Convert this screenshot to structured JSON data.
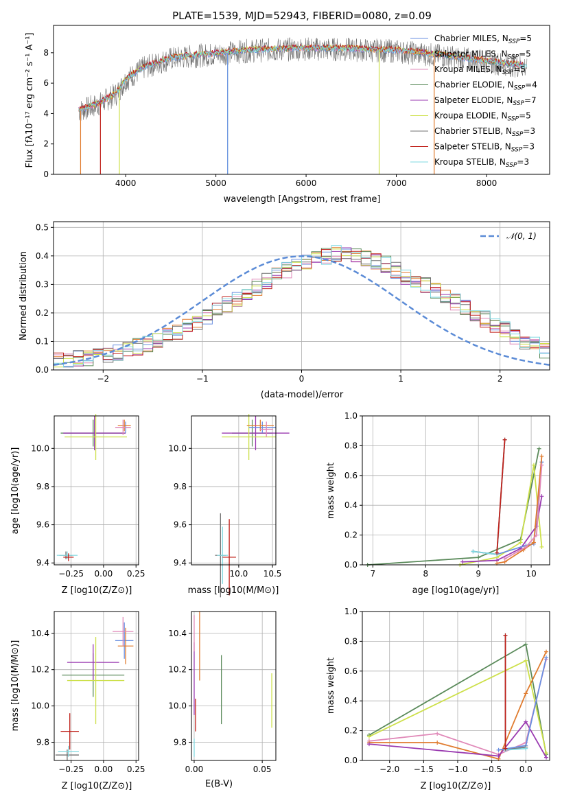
{
  "colors": {
    "cmiles": "#6a8fe0",
    "smiles": "#e07b2e",
    "kmiles": "#e088b8",
    "celodie": "#5a8a5a",
    "selodie": "#9a3ab0",
    "kelodie": "#cde04a",
    "cstelib": "#707070",
    "sstelib": "#c0201a",
    "kstelib": "#7fd8e0",
    "gauss": "#5b8bd6",
    "grid": "#b0b0b0"
  },
  "spectrum": {
    "title": "PLATE=1539, MJD=52943, FIBERID=0080, z=0.09",
    "xlabel": "wavelength [Angstrom, rest frame]",
    "ylabel": "Flux [fλ10⁻¹⁷ erg cm⁻² s⁻¹ A⁻¹]",
    "xticks": [
      "4000",
      "5000",
      "6000",
      "7000",
      "8000"
    ],
    "yticks": [
      "0",
      "2",
      "4",
      "6",
      "8"
    ],
    "legend": [
      {
        "label": "Chabrier MILES, N_SSP=5",
        "base": "Chabrier MILES, N",
        "sub": "SSP",
        "tail": "=5",
        "color": "cmiles"
      },
      {
        "label": "Salpeter MILES, N_SSP=5",
        "base": "Salpeter MILES, N",
        "sub": "SSP",
        "tail": "=5",
        "color": "smiles"
      },
      {
        "label": "Kroupa MILES, N_SSP=5",
        "base": "Kroupa MILES, N",
        "sub": "SSP",
        "tail": "=5",
        "color": "kmiles"
      },
      {
        "label": "Chabrier ELODIE, N_SSP=4",
        "base": "Chabrier ELODIE, N",
        "sub": "SSP",
        "tail": "=4",
        "color": "celodie"
      },
      {
        "label": "Salpeter ELODIE, N_SSP=7",
        "base": "Salpeter ELODIE, N",
        "sub": "SSP",
        "tail": "=7",
        "color": "selodie"
      },
      {
        "label": "Kroupa ELODIE, N_SSP=5",
        "base": "Kroupa ELODIE, N",
        "sub": "SSP",
        "tail": "=5",
        "color": "kelodie"
      },
      {
        "label": "Chabrier STELIB, N_SSP=3",
        "base": "Chabrier STELIB, N",
        "sub": "SSP",
        "tail": "=3",
        "color": "cstelib"
      },
      {
        "label": "Salpeter STELIB, N_SSP=3",
        "base": "Salpeter STELIB, N",
        "sub": "SSP",
        "tail": "=3",
        "color": "sstelib"
      },
      {
        "label": "Kroupa STELIB, N_SSP=3",
        "base": "Kroupa STELIB, N",
        "sub": "SSP",
        "tail": "=3",
        "color": "kstelib"
      }
    ]
  },
  "histogram": {
    "xlabel": "(data-model)/error",
    "ylabel": "Normed distribution",
    "xticks": [
      "−2",
      "−1",
      "0",
      "1",
      "2"
    ],
    "yticks": [
      "0.0",
      "0.1",
      "0.2",
      "0.3",
      "0.4",
      "0.5"
    ],
    "legend_label": "𝒩(0, 1)"
  },
  "panels": {
    "age_z": {
      "xlabel": "Z [log10(Z/Z⊙)]",
      "ylabel": "age  [log10(age/yr)]",
      "xticks": [
        "−0.25",
        "0.00",
        "0.25"
      ],
      "yticks": [
        "9.4",
        "9.6",
        "9.8",
        "10.0"
      ]
    },
    "age_mass": {
      "xlabel": "mass [log10(M/M⊙)]",
      "xticks": [
        "10.0",
        "10.5"
      ],
      "xticks_extra": "9.5",
      "yticks": [
        "9.4",
        "9.6",
        "9.8",
        "10.0"
      ]
    },
    "mw_age": {
      "xlabel": "age  [log10(age/yr)]",
      "ylabel": "mass weight",
      "xticks": [
        "7",
        "8",
        "9",
        "10"
      ],
      "yticks": [
        "0.0",
        "0.2",
        "0.4",
        "0.6",
        "0.8",
        "1.0"
      ]
    },
    "mass_z": {
      "xlabel": "Z [log10(Z/Z⊙)]",
      "ylabel": "mass [log10(M/M⊙)]",
      "xticks": [
        "−0.25",
        "0.00",
        "0.25"
      ],
      "yticks": [
        "9.8",
        "10.0",
        "10.2",
        "10.4"
      ]
    },
    "mass_ebv": {
      "xlabel": "E(B-V)",
      "xticks": [
        "0.00",
        "0.05"
      ],
      "yticks": [
        "9.8",
        "10.0",
        "10.2",
        "10.4"
      ]
    },
    "mw_z": {
      "xlabel": "Z [log10(Z/Z⊙)]",
      "ylabel": "mass weight",
      "xticks": [
        "−2.0",
        "−1.5",
        "−1.0",
        "−0.5",
        "0.0"
      ],
      "yticks": [
        "0.0",
        "0.2",
        "0.4",
        "0.6",
        "0.8",
        "1.0"
      ]
    }
  },
  "chart_data": [
    {
      "type": "line",
      "title": "PLATE=1539, MJD=52943, FIBERID=0080, z=0.09",
      "xlabel": "wavelength [Angstrom, rest frame]",
      "ylabel": "Flux [fλ10⁻¹⁷ erg cm⁻² s⁻¹ A⁻¹]",
      "xlim": [
        3200,
        8700
      ],
      "ylim": [
        0,
        9.8
      ],
      "series": [
        {
          "name": "Chabrier MILES, N_SSP=5"
        },
        {
          "name": "Salpeter MILES, N_SSP=5"
        },
        {
          "name": "Kroupa MILES, N_SSP=5"
        },
        {
          "name": "Chabrier ELODIE, N_SSP=4"
        },
        {
          "name": "Salpeter ELODIE, N_SSP=7"
        },
        {
          "name": "Kroupa ELODIE, N_SSP=5"
        },
        {
          "name": "Chabrier STELIB, N_SSP=3"
        },
        {
          "name": "Salpeter STELIB, N_SSP=3"
        },
        {
          "name": "Kroupa STELIB, N_SSP=3"
        }
      ],
      "continuum": {
        "x": [
          3500,
          3700,
          3900,
          4000,
          4200,
          4500,
          4800,
          5000,
          5300,
          5700,
          6000,
          6500,
          7000,
          7500,
          8000,
          8400
        ],
        "y": [
          4.2,
          4.6,
          5.3,
          6.2,
          7.0,
          7.6,
          7.8,
          7.9,
          8.1,
          8.2,
          8.25,
          8.2,
          8.1,
          7.8,
          7.4,
          7.1
        ]
      },
      "legend": "top-right",
      "grid": false
    },
    {
      "type": "bar",
      "xlabel": "(data-model)/error",
      "ylabel": "Normed distribution",
      "xlim": [
        -2.5,
        2.5
      ],
      "ylim": [
        0,
        0.52
      ],
      "bin_edges_start": -2.5,
      "bin_width": 0.1,
      "values": [
        0.03,
        0.03,
        0.04,
        0.04,
        0.05,
        0.05,
        0.06,
        0.07,
        0.08,
        0.09,
        0.1,
        0.12,
        0.13,
        0.15,
        0.17,
        0.19,
        0.21,
        0.23,
        0.25,
        0.27,
        0.29,
        0.31,
        0.33,
        0.35,
        0.37,
        0.38,
        0.39,
        0.4,
        0.41,
        0.41,
        0.4,
        0.39,
        0.38,
        0.37,
        0.35,
        0.33,
        0.32,
        0.3,
        0.28,
        0.26,
        0.24,
        0.22,
        0.2,
        0.18,
        0.16,
        0.14,
        0.12,
        0.1,
        0.09,
        0.07
      ],
      "gaussian": {
        "name": "𝒩(0, 1)",
        "mean": 0,
        "std": 1
      },
      "legend": "top-right",
      "grid": true
    },
    {
      "type": "scatter",
      "xlabel": "Z [log10(Z/Z⊙)]",
      "ylabel": "age  [log10(age/yr)]",
      "xlim": [
        -0.38,
        0.27
      ],
      "ylim": [
        9.39,
        10.17
      ],
      "points": [
        {
          "c": "celodie",
          "x": -0.08,
          "y": 10.08,
          "xerr": 0.25,
          "yerr": 0.07
        },
        {
          "c": "selodie",
          "x": -0.07,
          "y": 10.08,
          "xerr": 0.24,
          "yerr": 0.09
        },
        {
          "c": "kelodie",
          "x": -0.06,
          "y": 10.06,
          "xerr": 0.24,
          "yerr": 0.12
        },
        {
          "c": "cmiles",
          "x": 0.17,
          "y": 10.11,
          "xerr": 0.04,
          "yerr": 0.03
        },
        {
          "c": "smiles",
          "x": 0.16,
          "y": 10.12,
          "xerr": 0.05,
          "yerr": 0.03
        },
        {
          "c": "kmiles",
          "x": 0.15,
          "y": 10.11,
          "xerr": 0.06,
          "yerr": 0.04
        },
        {
          "c": "cstelib",
          "x": -0.29,
          "y": 9.44,
          "xerr": 0.05,
          "yerr": 0.02
        },
        {
          "c": "kstelib",
          "x": -0.28,
          "y": 9.44,
          "xerr": 0.08,
          "yerr": 0.02
        },
        {
          "c": "sstelib",
          "x": -0.27,
          "y": 9.43,
          "xerr": 0.04,
          "yerr": 0.02
        }
      ]
    },
    {
      "type": "scatter",
      "xlabel": "mass [log10(M/M⊙)]",
      "xlim": [
        9.3,
        10.55
      ],
      "ylim": [
        9.39,
        10.17
      ],
      "points": [
        {
          "c": "celodie",
          "x": 10.2,
          "y": 10.08,
          "xerr": 0.3,
          "yerr": 0.07
        },
        {
          "c": "selodie",
          "x": 10.25,
          "y": 10.08,
          "xerr": 0.5,
          "yerr": 0.09
        },
        {
          "c": "kelodie",
          "x": 10.15,
          "y": 10.06,
          "xerr": 0.4,
          "yerr": 0.12
        },
        {
          "c": "cmiles",
          "x": 10.35,
          "y": 10.11,
          "xerr": 0.2,
          "yerr": 0.03
        },
        {
          "c": "smiles",
          "x": 10.32,
          "y": 10.12,
          "xerr": 0.2,
          "yerr": 0.03
        },
        {
          "c": "kmiles",
          "x": 10.41,
          "y": 10.1,
          "xerr": 0.1,
          "yerr": 0.04
        },
        {
          "c": "cstelib",
          "x": 9.73,
          "y": 9.44,
          "xerr": 0.08,
          "yerr": 0.22
        },
        {
          "c": "kstelib",
          "x": 9.76,
          "y": 9.44,
          "xerr": 0.08,
          "yerr": 0.15
        },
        {
          "c": "sstelib",
          "x": 9.86,
          "y": 9.43,
          "xerr": 0.1,
          "yerr": 0.2
        }
      ]
    },
    {
      "type": "line",
      "xlabel": "age  [log10(age/yr)]",
      "ylabel": "mass weight",
      "xlim": [
        6.8,
        10.35
      ],
      "ylim": [
        0,
        1.0
      ],
      "series": [
        {
          "c": "celodie",
          "x": [
            6.9,
            9.0,
            9.8,
            10.15
          ],
          "y": [
            0.0,
            0.05,
            0.17,
            0.78
          ]
        },
        {
          "c": "kelodie",
          "x": [
            8.65,
            9.35,
            9.8,
            10.05,
            10.2
          ],
          "y": [
            0.0,
            0.05,
            0.15,
            0.67,
            0.12
          ]
        },
        {
          "c": "selodie",
          "x": [
            8.7,
            9.35,
            9.8,
            10.1,
            10.2
          ],
          "y": [
            0.02,
            0.03,
            0.11,
            0.26,
            0.46
          ]
        },
        {
          "c": "cmiles",
          "x": [
            8.9,
            9.35,
            9.9,
            10.05,
            10.2
          ],
          "y": [
            0.09,
            0.07,
            0.13,
            0.14,
            0.69
          ]
        },
        {
          "c": "smiles",
          "x": [
            9.35,
            9.5,
            9.85,
            10.05,
            10.2
          ],
          "y": [
            0.01,
            0.02,
            0.1,
            0.15,
            0.73
          ]
        },
        {
          "c": "kmiles",
          "x": [
            9.5,
            9.9,
            10.1,
            10.2
          ],
          "y": [
            0.04,
            0.12,
            0.2,
            0.67
          ]
        },
        {
          "c": "cstelib",
          "x": [
            8.9,
            9.35,
            9.5
          ],
          "y": [
            0.09,
            0.07,
            0.84
          ]
        },
        {
          "c": "kstelib",
          "x": [
            8.9,
            9.35,
            9.5
          ],
          "y": [
            0.09,
            0.07,
            0.84
          ]
        },
        {
          "c": "sstelib",
          "x": [
            9.35,
            9.5
          ],
          "y": [
            0.08,
            0.84
          ]
        }
      ]
    },
    {
      "type": "scatter",
      "xlabel": "Z [log10(Z/Z⊙)]",
      "ylabel": "mass [log10(M/M⊙)]",
      "xlim": [
        -0.38,
        0.27
      ],
      "ylim": [
        9.7,
        10.52
      ],
      "points": [
        {
          "c": "celodie",
          "x": -0.08,
          "y": 10.17,
          "xerr": 0.24,
          "yerr": 0.12
        },
        {
          "c": "selodie",
          "x": -0.08,
          "y": 10.24,
          "xerr": 0.2,
          "yerr": 0.1
        },
        {
          "c": "kelodie",
          "x": -0.06,
          "y": 10.14,
          "xerr": 0.22,
          "yerr": 0.24
        },
        {
          "c": "cmiles",
          "x": 0.16,
          "y": 10.36,
          "xerr": 0.07,
          "yerr": 0.1
        },
        {
          "c": "smiles",
          "x": 0.17,
          "y": 10.33,
          "xerr": 0.06,
          "yerr": 0.1
        },
        {
          "c": "kmiles",
          "x": 0.15,
          "y": 10.41,
          "xerr": 0.08,
          "yerr": 0.08
        },
        {
          "c": "cstelib",
          "x": -0.28,
          "y": 9.73,
          "xerr": 0.09,
          "yerr": 0.03
        },
        {
          "c": "kstelib",
          "x": -0.27,
          "y": 9.75,
          "xerr": 0.08,
          "yerr": 0.03
        },
        {
          "c": "sstelib",
          "x": -0.26,
          "y": 9.86,
          "xerr": 0.07,
          "yerr": 0.1
        }
      ]
    },
    {
      "type": "scatter",
      "xlabel": "E(B-V)",
      "xlim": [
        -0.002,
        0.06
      ],
      "ylim": [
        9.7,
        10.52
      ],
      "points": [
        {
          "c": "celodie",
          "x": 0.02,
          "y": 10.09,
          "yerr": 0.19
        },
        {
          "c": "kelodie",
          "x": 0.057,
          "y": 10.03,
          "yerr": 0.15
        },
        {
          "c": "selodie",
          "x": 0.0,
          "y": 10.15,
          "yerr": 0.2
        },
        {
          "c": "smiles",
          "x": 0.004,
          "y": 10.33,
          "yerr": 0.19
        },
        {
          "c": "kmiles",
          "x": 0.0,
          "y": 10.4,
          "yerr": 0.1
        },
        {
          "c": "sstelib",
          "x": 0.001,
          "y": 9.95,
          "yerr": 0.09
        },
        {
          "c": "kstelib",
          "x": 0.0,
          "y": 9.77,
          "yerr": 0.05
        }
      ]
    },
    {
      "type": "line",
      "xlabel": "Z [log10(Z/Z⊙)]",
      "ylabel": "mass weight",
      "xlim": [
        -2.4,
        0.35
      ],
      "ylim": [
        0,
        1.0
      ],
      "series": [
        {
          "c": "celodie",
          "x": [
            -2.3,
            0.0,
            0.3
          ],
          "y": [
            0.17,
            0.78,
            0.04
          ]
        },
        {
          "c": "kelodie",
          "x": [
            -2.3,
            0.0,
            0.3
          ],
          "y": [
            0.16,
            0.67,
            0.05
          ]
        },
        {
          "c": "kmiles",
          "x": [
            -2.3,
            -1.3,
            -0.4,
            0.0,
            0.3
          ],
          "y": [
            0.13,
            0.18,
            0.04,
            0.12,
            0.68
          ]
        },
        {
          "c": "smiles",
          "x": [
            -2.3,
            -1.3,
            -0.4,
            0.0,
            0.3
          ],
          "y": [
            0.12,
            0.12,
            0.01,
            0.45,
            0.73
          ]
        },
        {
          "c": "selodie",
          "x": [
            -2.3,
            -0.4,
            0.0,
            0.3
          ],
          "y": [
            0.11,
            0.03,
            0.26,
            0.02
          ]
        },
        {
          "c": "cmiles",
          "x": [
            -0.4,
            0.0,
            0.3
          ],
          "y": [
            0.07,
            0.1,
            0.69
          ]
        },
        {
          "c": "cstelib",
          "x": [
            -0.3,
            -0.3,
            0.0
          ],
          "y": [
            0.84,
            0.07,
            0.09
          ]
        },
        {
          "c": "kstelib",
          "x": [
            -0.3,
            -0.3,
            0.0
          ],
          "y": [
            0.84,
            0.07,
            0.08
          ]
        },
        {
          "c": "sstelib",
          "x": [
            -0.3,
            -0.3
          ],
          "y": [
            0.84,
            0.08
          ]
        }
      ]
    }
  ]
}
